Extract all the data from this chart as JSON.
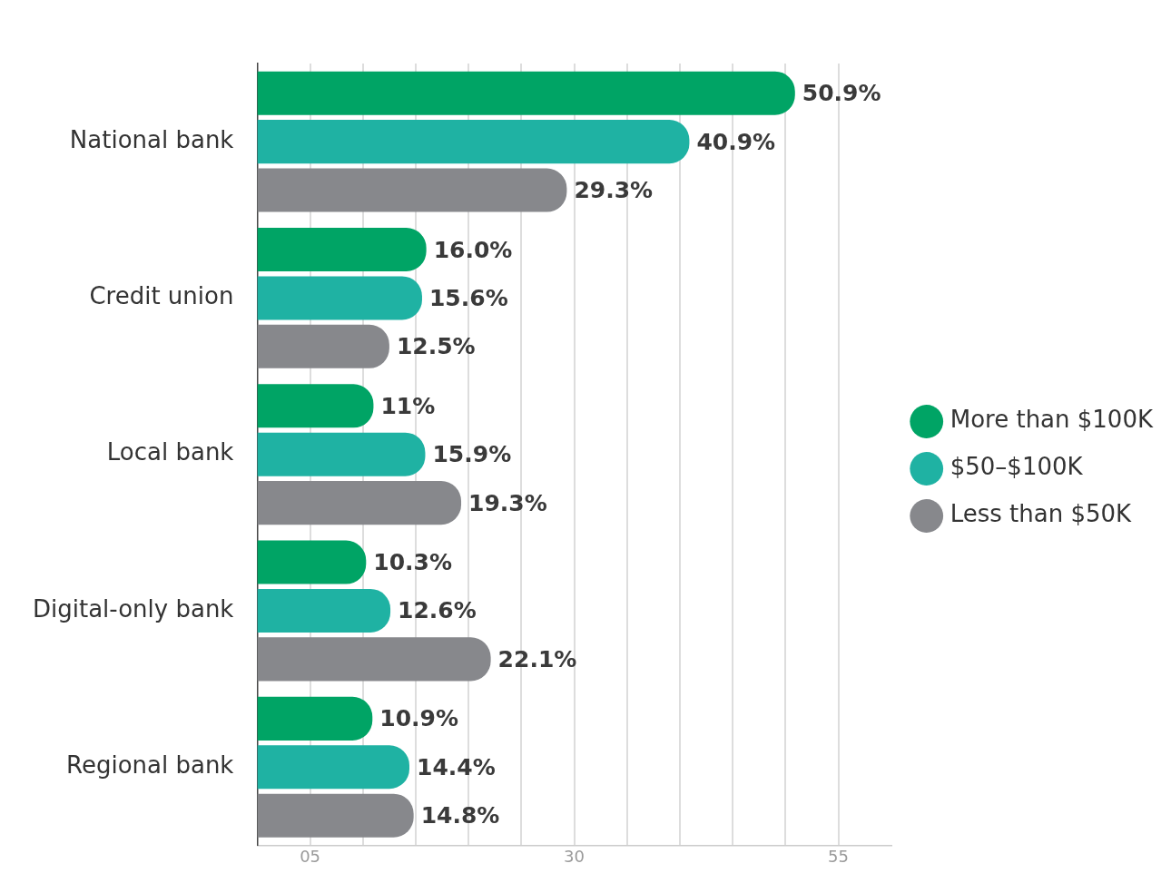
{
  "chart_data": {
    "type": "bar",
    "orientation": "horizontal",
    "categories": [
      "National bank",
      "Credit union",
      "Local bank",
      "Digital-only bank",
      "Regional bank"
    ],
    "series": [
      {
        "name": "More than $100K",
        "color": "#00a465",
        "values": [
          50.9,
          16.0,
          11,
          10.3,
          10.9
        ],
        "value_labels": [
          "50.9%",
          "16.0%",
          "11%",
          "10.3%",
          "10.9%"
        ]
      },
      {
        "name": "$50–$100K",
        "color": "#1fb2a3",
        "values": [
          40.9,
          15.6,
          15.9,
          12.6,
          14.4
        ],
        "value_labels": [
          "40.9%",
          "15.6%",
          "15.9%",
          "12.6%",
          "14.4%"
        ]
      },
      {
        "name": "Less than $50K",
        "color": "#87888c",
        "values": [
          29.3,
          12.5,
          19.3,
          22.1,
          14.8
        ],
        "value_labels": [
          "29.3%",
          "12.5%",
          "19.3%",
          "22.1%",
          "14.8%"
        ]
      }
    ],
    "xlim": [
      0,
      60
    ],
    "xticks": [
      {
        "value": 5,
        "label": "05"
      },
      {
        "value": 10,
        "label": null
      },
      {
        "value": 15,
        "label": null
      },
      {
        "value": 20,
        "label": null
      },
      {
        "value": 25,
        "label": null
      },
      {
        "value": 30,
        "label": "30"
      },
      {
        "value": 35,
        "label": null
      },
      {
        "value": 40,
        "label": null
      },
      {
        "value": 45,
        "label": null
      },
      {
        "value": 50,
        "label": null
      },
      {
        "value": 55,
        "label": "55"
      }
    ],
    "grid": "x",
    "legend": "right"
  }
}
